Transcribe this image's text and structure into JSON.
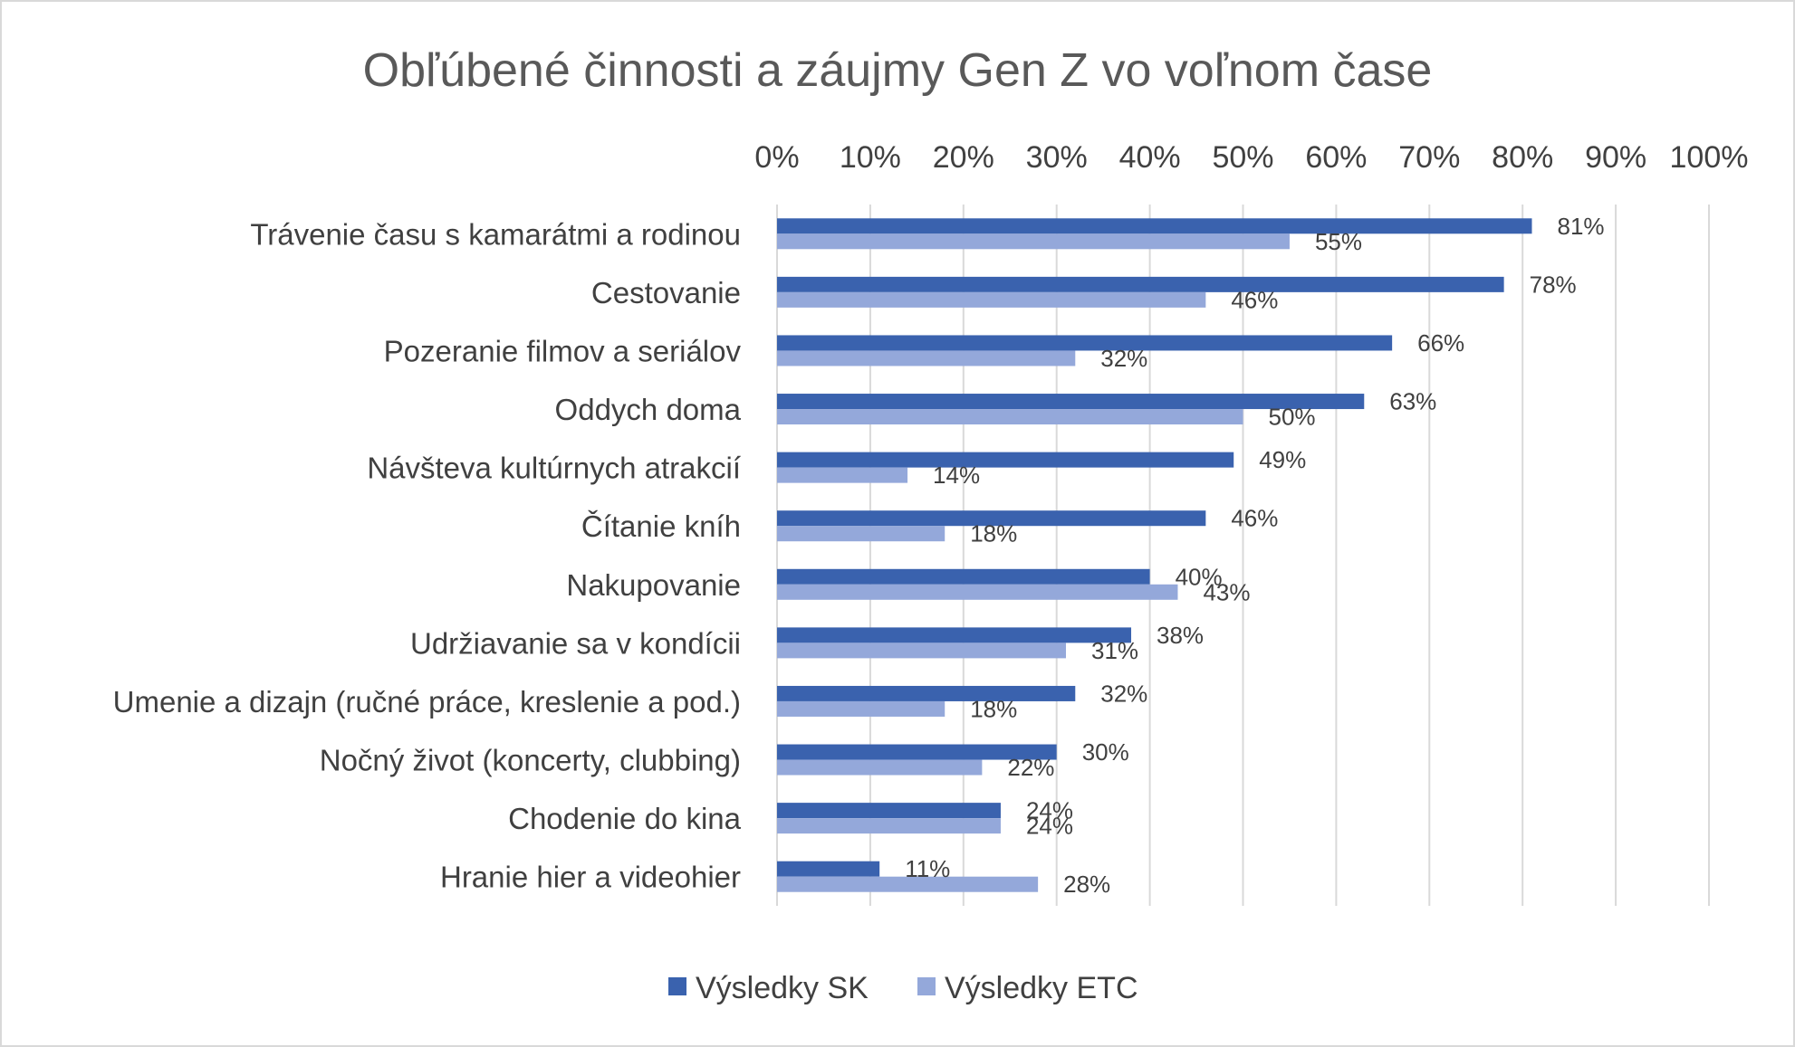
{
  "chart_data": {
    "type": "bar",
    "orientation": "horizontal",
    "title": "Obľúbené činnosti a záujmy Gen Z vo voľnom čase",
    "xlim": [
      0,
      100
    ],
    "x_ticks": [
      "0%",
      "10%",
      "20%",
      "30%",
      "40%",
      "50%",
      "60%",
      "70%",
      "80%",
      "90%",
      "100%"
    ],
    "x_axis_position": "top",
    "grid": true,
    "legend_position": "bottom",
    "categories": [
      "Trávenie času s kamarátmi a rodinou",
      "Cestovanie",
      "Pozeranie filmov a seriálov",
      "Oddych doma",
      "Návšteva kultúrnych atrakcií",
      "Čítanie kníh",
      "Nakupovanie",
      "Udržiavanie sa v kondícii",
      "Umenie a dizajn (ručné práce, kreslenie a pod.)",
      "Nočný život (koncerty, clubbing)",
      "Chodenie do kina",
      "Hranie hier a videohier"
    ],
    "series": [
      {
        "name": "Výsledky SK",
        "color": "#3a62ae",
        "values": [
          81,
          78,
          66,
          63,
          49,
          46,
          40,
          38,
          32,
          30,
          24,
          11
        ],
        "labels": [
          "81%",
          "78%",
          "66%",
          "63%",
          "49%",
          "46%",
          "40%",
          "38%",
          "32%",
          "30%",
          "24%",
          "11%"
        ]
      },
      {
        "name": "Výsledky ETC",
        "color": "#94a8da",
        "values": [
          55,
          46,
          32,
          50,
          14,
          18,
          43,
          31,
          18,
          22,
          24,
          28
        ],
        "labels": [
          "55%",
          "46%",
          "32%",
          "50%",
          "14%",
          "18%",
          "43%",
          "31%",
          "18%",
          "22%",
          "24%",
          "28%"
        ]
      }
    ]
  }
}
